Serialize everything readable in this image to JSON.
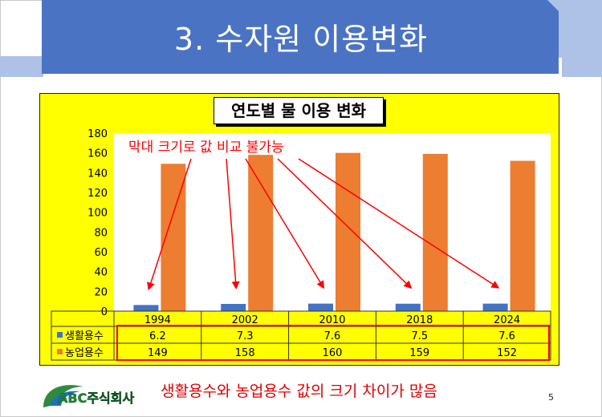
{
  "slide": {
    "title": "3. 수자원 이용변화",
    "footer_note": "생활용수와 농업용수 값의 크기 차이가 많음",
    "page_number": "5",
    "logo_text": "ABC주식회사"
  },
  "colors": {
    "banner": "#4a73c4",
    "banner_light": "#aec1e6",
    "chart_background": "#ffff00",
    "domestic": "#4472c4",
    "agricultural": "#ed7d31",
    "annotation": "#ff0000"
  },
  "annotation": "막대 크기로 값 비교 불가능",
  "chart_data": {
    "type": "bar",
    "title": "연도별 물 이용 변화",
    "categories": [
      "1994",
      "2002",
      "2010",
      "2018",
      "2024"
    ],
    "series": [
      {
        "name": "생활용수",
        "values": [
          6.2,
          7.3,
          7.6,
          7.5,
          7.6
        ]
      },
      {
        "name": "농업용수",
        "values": [
          149,
          158,
          160,
          159,
          152
        ]
      }
    ],
    "table_values": [
      [
        "6.2",
        "7.3",
        "7.6",
        "7.5",
        "7.6"
      ],
      [
        "149",
        "158",
        "160",
        "159",
        "152"
      ]
    ],
    "ylim": [
      0,
      180
    ],
    "yticks": [
      0,
      20,
      40,
      60,
      80,
      100,
      120,
      140,
      160,
      180
    ],
    "grid": false,
    "legend": "data-table"
  }
}
